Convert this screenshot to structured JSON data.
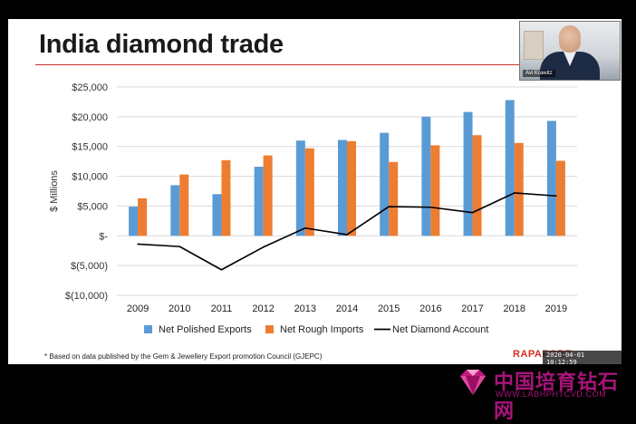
{
  "slide": {
    "title": "India diamond trade",
    "footnote": "* Based on data published by the Gem & Jewellery Export promotion Council (GJEPC)",
    "logo": "RAPAPORT",
    "timestamp": "2020-04-01  10:12:59"
  },
  "webcam": {
    "name": "Avi Krawitz"
  },
  "watermark": {
    "cn_text": "中国培育钻石网",
    "url": "WWW.LABHPHTCVD.COM"
  },
  "colors": {
    "polished": "#5b9bd5",
    "rough": "#ed7d31",
    "account": "#000000",
    "grid": "#d9d9d9",
    "title_rule": "#c9302c"
  },
  "chart_data": {
    "type": "bar",
    "ylabel": "$ Millions",
    "categories": [
      "2009",
      "2010",
      "2011",
      "2012",
      "2013",
      "2014",
      "2015",
      "2016",
      "2017",
      "2018",
      "2019"
    ],
    "series": [
      {
        "name": "Net Polished Exports",
        "kind": "bar",
        "values": [
          4900,
          8500,
          7000,
          11600,
          16000,
          16100,
          17300,
          20000,
          20800,
          22800,
          19300
        ]
      },
      {
        "name": "Net Rough Imports",
        "kind": "bar",
        "values": [
          6300,
          10300,
          12700,
          13500,
          14700,
          15900,
          12400,
          15200,
          16900,
          15600,
          12600
        ]
      },
      {
        "name": "Net Diamond Account",
        "kind": "line",
        "values": [
          -1400,
          -1800,
          -5700,
          -1900,
          1300,
          200,
          4900,
          4800,
          3900,
          7200,
          6700
        ]
      }
    ],
    "ylim": [
      -10000,
      25000
    ],
    "yticks": [
      25000,
      20000,
      15000,
      10000,
      5000,
      0,
      -5000,
      -10000
    ],
    "ytick_labels": [
      "$25,000",
      "$20,000",
      "$15,000",
      "$10,000",
      "$5,000",
      "$-",
      "$(5,000)",
      "$(10,000)"
    ],
    "grid": true,
    "legend": "bottom"
  }
}
